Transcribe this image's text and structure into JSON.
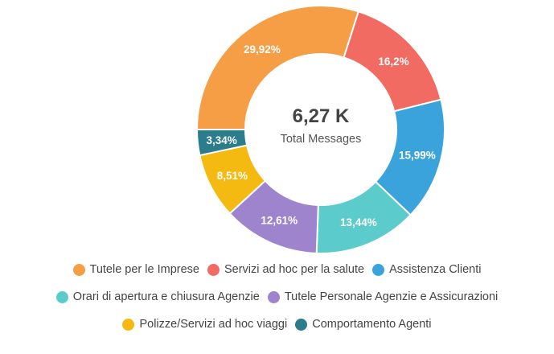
{
  "chart_data": {
    "type": "pie",
    "donut": true,
    "center_value": "6,27 K",
    "center_label": "Total Messages",
    "legend_position": "bottom",
    "slices": [
      {
        "label": "Tutele per le Imprese",
        "value": 29.92,
        "display": "29,92%",
        "color": "#F59E45"
      },
      {
        "label": "Servizi ad hoc per la salute",
        "value": 16.2,
        "display": "16,2%",
        "color": "#F26B63"
      },
      {
        "label": "Assistenza Clienti",
        "value": 15.99,
        "display": "15,99%",
        "color": "#3BA3DB"
      },
      {
        "label": "Orari di apertura e chiusura Agenzie",
        "value": 13.44,
        "display": "13,44%",
        "color": "#5CCBCB"
      },
      {
        "label": "Tutele Personale Agenzie e Assicurazioni",
        "value": 12.61,
        "display": "12,61%",
        "color": "#9D84CC"
      },
      {
        "label": "Polizze/Servizi ad hoc viaggi",
        "value": 8.51,
        "display": "8,51%",
        "color": "#F5BA12"
      },
      {
        "label": "Comportamento Agenti",
        "value": 3.34,
        "display": "3,34%",
        "color": "#2B7D8C"
      }
    ]
  }
}
